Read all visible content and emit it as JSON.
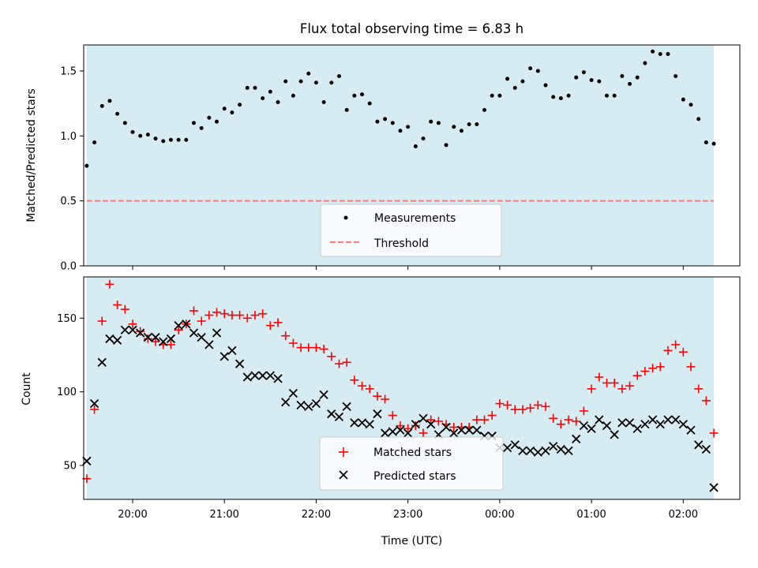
{
  "chart_data": [
    {
      "type": "scatter",
      "title": "Flux total observing time = 6.83 h",
      "xlabel": "",
      "ylabel": "Matched/Predicted stars",
      "xlim": [
        "19:28",
        "02:37"
      ],
      "ylim": [
        0,
        1.7
      ],
      "yticks": [
        "0.0",
        "0.5",
        "1.0",
        "1.5"
      ],
      "observing_window": [
        "19:30",
        "02:20"
      ],
      "threshold": 0.5,
      "legend": {
        "position": "lower center",
        "entries": [
          "Measurements",
          "Threshold"
        ]
      },
      "colors": {
        "background_span": "#add8e6",
        "points": "#000000",
        "threshold": "#f08080"
      },
      "series": [
        {
          "name": "Measurements",
          "x": [
            "19:30",
            "19:35",
            "19:40",
            "19:45",
            "19:50",
            "19:55",
            "20:00",
            "20:05",
            "20:10",
            "20:15",
            "20:20",
            "20:25",
            "20:30",
            "20:35",
            "20:40",
            "20:45",
            "20:50",
            "20:55",
            "21:00",
            "21:05",
            "21:10",
            "21:15",
            "21:20",
            "21:25",
            "21:30",
            "21:35",
            "21:40",
            "21:45",
            "21:50",
            "21:55",
            "22:00",
            "22:05",
            "22:10",
            "22:15",
            "22:20",
            "22:25",
            "22:30",
            "22:35",
            "22:40",
            "22:45",
            "22:50",
            "22:55",
            "23:00",
            "23:05",
            "23:10",
            "23:15",
            "23:20",
            "23:25",
            "23:30",
            "23:35",
            "23:40",
            "23:45",
            "23:50",
            "23:55",
            "00:00",
            "00:05",
            "00:10",
            "00:15",
            "00:20",
            "00:25",
            "00:30",
            "00:35",
            "00:40",
            "00:45",
            "00:50",
            "00:55",
            "01:00",
            "01:05",
            "01:10",
            "01:15",
            "01:20",
            "01:25",
            "01:30",
            "01:35",
            "01:40",
            "01:45",
            "01:50",
            "01:55",
            "02:00",
            "02:05",
            "02:10",
            "02:15",
            "02:20"
          ],
          "y": [
            0.77,
            0.95,
            1.23,
            1.27,
            1.17,
            1.1,
            1.03,
            1.0,
            1.01,
            0.98,
            0.96,
            0.97,
            0.97,
            0.97,
            1.1,
            1.06,
            1.14,
            1.11,
            1.21,
            1.18,
            1.24,
            1.37,
            1.37,
            1.29,
            1.34,
            1.26,
            1.42,
            1.31,
            1.42,
            1.48,
            1.41,
            1.26,
            1.41,
            1.46,
            1.2,
            1.31,
            1.32,
            1.25,
            1.11,
            1.13,
            1.1,
            1.04,
            1.07,
            0.92,
            0.98,
            1.11,
            1.1,
            0.93,
            1.07,
            1.04,
            1.09,
            1.09,
            1.2,
            1.31,
            1.31,
            1.44,
            1.37,
            1.42,
            1.52,
            1.5,
            1.39,
            1.3,
            1.29,
            1.31,
            1.45,
            1.49,
            1.43,
            1.42,
            1.31,
            1.31,
            1.46,
            1.4,
            1.45,
            1.56,
            1.65,
            1.63,
            1.63,
            1.46,
            1.28,
            1.24,
            1.13,
            0.95,
            0.94
          ]
        }
      ]
    },
    {
      "type": "scatter",
      "title": "",
      "xlabel": "Time (UTC)",
      "ylabel": "Count",
      "xlim": [
        "19:28",
        "02:37"
      ],
      "ylim": [
        27,
        178
      ],
      "yticks": [
        "50",
        "100",
        "150"
      ],
      "xticks": [
        "20:00",
        "21:00",
        "22:00",
        "23:00",
        "00:00",
        "01:00",
        "02:00"
      ],
      "observing_window": [
        "19:30",
        "02:20"
      ],
      "legend": {
        "position": "lower center",
        "entries": [
          "Matched stars",
          "Predicted stars"
        ]
      },
      "colors": {
        "background_span": "#add8e6",
        "matched": "#ff0000",
        "predicted": "#000000"
      },
      "series": [
        {
          "name": "Matched stars",
          "marker": "plus",
          "x": [
            "19:30",
            "19:35",
            "19:40",
            "19:45",
            "19:50",
            "19:55",
            "20:00",
            "20:05",
            "20:10",
            "20:15",
            "20:20",
            "20:25",
            "20:30",
            "20:35",
            "20:40",
            "20:45",
            "20:50",
            "20:55",
            "21:00",
            "21:05",
            "21:10",
            "21:15",
            "21:20",
            "21:25",
            "21:30",
            "21:35",
            "21:40",
            "21:45",
            "21:50",
            "21:55",
            "22:00",
            "22:05",
            "22:10",
            "22:15",
            "22:20",
            "22:25",
            "22:30",
            "22:35",
            "22:40",
            "22:45",
            "22:50",
            "22:55",
            "23:00",
            "23:05",
            "23:10",
            "23:15",
            "23:20",
            "23:25",
            "23:30",
            "23:35",
            "23:40",
            "23:45",
            "23:50",
            "23:55",
            "00:00",
            "00:05",
            "00:10",
            "00:15",
            "00:20",
            "00:25",
            "00:30",
            "00:35",
            "00:40",
            "00:45",
            "00:50",
            "00:55",
            "01:00",
            "01:05",
            "01:10",
            "01:15",
            "01:20",
            "01:25",
            "01:30",
            "01:35",
            "01:40",
            "01:45",
            "01:50",
            "01:55",
            "02:00",
            "02:05",
            "02:10",
            "02:15",
            "02:20"
          ],
          "y": [
            41,
            88,
            148,
            173,
            159,
            156,
            146,
            141,
            136,
            134,
            132,
            132,
            142,
            146,
            155,
            148,
            152,
            154,
            153,
            152,
            152,
            150,
            152,
            153,
            145,
            147,
            138,
            133,
            130,
            130,
            130,
            129,
            124,
            119,
            120,
            108,
            104,
            102,
            97,
            95,
            84,
            77,
            75,
            77,
            72,
            81,
            80,
            78,
            76,
            76,
            76,
            81,
            81,
            84,
            92,
            91,
            88,
            88,
            89,
            91,
            90,
            82,
            78,
            81,
            80,
            87,
            102,
            110,
            106,
            106,
            102,
            104,
            111,
            114,
            116,
            117,
            128,
            132,
            127,
            117,
            102,
            94,
            72
          ]
        },
        {
          "name": "Predicted stars",
          "marker": "x",
          "x": [
            "19:30",
            "19:35",
            "19:40",
            "19:45",
            "19:50",
            "19:55",
            "20:00",
            "20:05",
            "20:10",
            "20:15",
            "20:20",
            "20:25",
            "20:30",
            "20:35",
            "20:40",
            "20:45",
            "20:50",
            "20:55",
            "21:00",
            "21:05",
            "21:10",
            "21:15",
            "21:20",
            "21:25",
            "21:30",
            "21:35",
            "21:40",
            "21:45",
            "21:50",
            "21:55",
            "22:00",
            "22:05",
            "22:10",
            "22:15",
            "22:20",
            "22:25",
            "22:30",
            "22:35",
            "22:40",
            "22:45",
            "22:50",
            "22:55",
            "23:00",
            "23:05",
            "23:10",
            "23:15",
            "23:20",
            "23:25",
            "23:30",
            "23:35",
            "23:40",
            "23:45",
            "23:50",
            "23:55",
            "00:00",
            "00:05",
            "00:10",
            "00:15",
            "00:20",
            "00:25",
            "00:30",
            "00:35",
            "00:40",
            "00:45",
            "00:50",
            "00:55",
            "01:00",
            "01:05",
            "01:10",
            "01:15",
            "01:20",
            "01:25",
            "01:30",
            "01:35",
            "01:40",
            "01:45",
            "01:50",
            "01:55",
            "02:00",
            "02:05",
            "02:10",
            "02:15",
            "02:20"
          ],
          "y": [
            53,
            92,
            120,
            136,
            135,
            142,
            142,
            140,
            137,
            137,
            134,
            136,
            145,
            146,
            140,
            137,
            132,
            140,
            124,
            128,
            119,
            110,
            111,
            111,
            111,
            109,
            93,
            99,
            91,
            90,
            92,
            98,
            85,
            83,
            90,
            79,
            79,
            78,
            85,
            72,
            73,
            74,
            72,
            78,
            82,
            78,
            71,
            76,
            72,
            74,
            74,
            74,
            70,
            70,
            62,
            62,
            64,
            60,
            60,
            59,
            60,
            63,
            61,
            60,
            68,
            77,
            75,
            81,
            77,
            71,
            79,
            79,
            75,
            78,
            81,
            78,
            81,
            81,
            78,
            74,
            64,
            61,
            35
          ]
        }
      ]
    }
  ]
}
